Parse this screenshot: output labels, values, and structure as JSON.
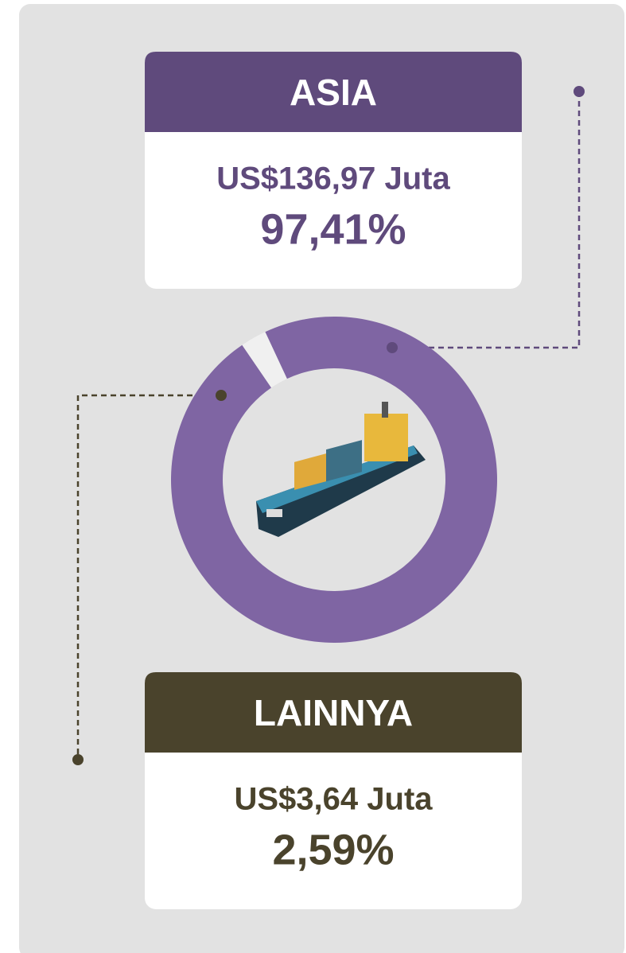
{
  "chart_data": {
    "type": "pie",
    "categories": [
      "ASIA",
      "LAINNYA"
    ],
    "values": [
      97.41,
      2.59
    ],
    "value_labels": [
      "97,41%",
      "2,59%"
    ],
    "amount_labels": [
      "US$136,97 Juta",
      "US$3,64 Juta"
    ],
    "colors": [
      "#7f65a3",
      "#f0f0f0"
    ],
    "header_colors": [
      "#5f4a7c",
      "#4a432c"
    ],
    "text_colors": [
      "#5f4a7c",
      "#4a432c"
    ]
  }
}
